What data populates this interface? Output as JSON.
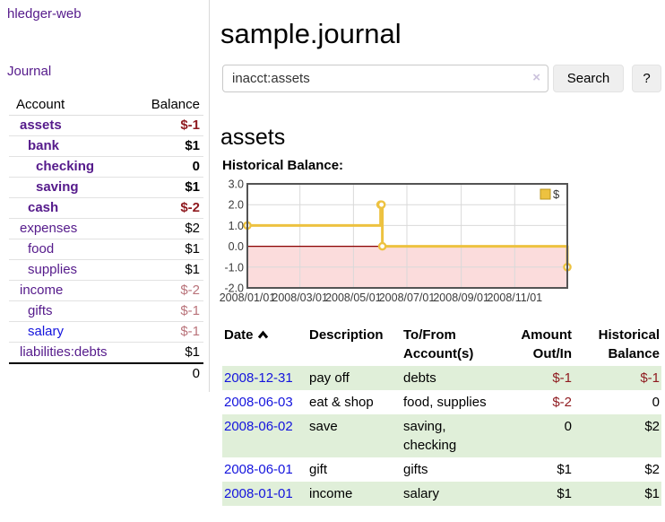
{
  "colors": {
    "link_purple": "#551a8b",
    "link_blue": "#1414dd",
    "negative_strong": "#8f1a1f",
    "negative_muted": "#b9737a",
    "row_green": "#e0efd9",
    "series_gold": "#edc240",
    "series_gold_dark": "#b9961f",
    "negative_region_pink": "#fbdcdc",
    "zero_line_red": "#8b0000",
    "chart_border": "#545454",
    "grid_line": "#d9d9d9"
  },
  "sidebar": {
    "app_title": "hledger-web",
    "journal_label": "Journal",
    "accounts_table": {
      "headers": {
        "account": "Account",
        "balance": "Balance"
      },
      "rows": [
        {
          "name": "assets",
          "depth": 1,
          "bold": true,
          "link_color": "purple",
          "balance": "$-1",
          "balance_color": "neg-strong"
        },
        {
          "name": "bank",
          "depth": 2,
          "bold": true,
          "link_color": "purple",
          "balance": "$1",
          "balance_color": "plain"
        },
        {
          "name": "checking",
          "depth": 3,
          "bold": true,
          "link_color": "purple",
          "balance": "0",
          "balance_color": "plain"
        },
        {
          "name": "saving",
          "depth": 3,
          "bold": true,
          "link_color": "purple",
          "balance": "$1",
          "balance_color": "plain"
        },
        {
          "name": "cash",
          "depth": 2,
          "bold": true,
          "link_color": "purple",
          "balance": "$-2",
          "balance_color": "neg-strong"
        },
        {
          "name": "expenses",
          "depth": 1,
          "bold": false,
          "link_color": "purple",
          "balance": "$2",
          "balance_color": "plain"
        },
        {
          "name": "food",
          "depth": 2,
          "bold": false,
          "link_color": "purple",
          "balance": "$1",
          "balance_color": "plain"
        },
        {
          "name": "supplies",
          "depth": 2,
          "bold": false,
          "link_color": "purple",
          "balance": "$1",
          "balance_color": "plain"
        },
        {
          "name": "income",
          "depth": 1,
          "bold": false,
          "link_color": "purple",
          "balance": "$-2",
          "balance_color": "neg-muted"
        },
        {
          "name": "gifts",
          "depth": 2,
          "bold": false,
          "link_color": "purple",
          "balance": "$-1",
          "balance_color": "neg-muted"
        },
        {
          "name": "salary",
          "depth": 2,
          "bold": false,
          "link_color": "blue",
          "balance": "$-1",
          "balance_color": "neg-muted"
        },
        {
          "name": "liabilities:debts",
          "depth": 1,
          "bold": false,
          "link_color": "purple",
          "balance": "$1",
          "balance_color": "plain",
          "last": true
        }
      ],
      "total": "0"
    }
  },
  "main": {
    "title": "sample.journal",
    "search": {
      "value": "inacct:assets",
      "clear_icon": "×",
      "search_label": "Search",
      "help_label": "?"
    },
    "account_heading": "assets",
    "register": {
      "headers": {
        "date": "Date",
        "description": "Description",
        "tofrom": "To/From Account(s)",
        "amount": "Amount Out/In",
        "balance": "Historical Balance"
      },
      "rows": [
        {
          "date": "2008-12-31",
          "description": "pay off",
          "accounts": "debts",
          "amount": "$-1",
          "amount_neg": true,
          "balance": "$-1",
          "balance_neg": true,
          "green": true
        },
        {
          "date": "2008-06-03",
          "description": "eat & shop",
          "accounts": "food, supplies",
          "amount": "$-2",
          "amount_neg": true,
          "balance": "0",
          "balance_neg": false,
          "green": false
        },
        {
          "date": "2008-06-02",
          "description": "save",
          "accounts": "saving, checking",
          "amount": "0",
          "amount_neg": false,
          "balance": "$2",
          "balance_neg": false,
          "green": true
        },
        {
          "date": "2008-06-01",
          "description": "gift",
          "accounts": "gifts",
          "amount": "$1",
          "amount_neg": false,
          "balance": "$2",
          "balance_neg": false,
          "green": false
        },
        {
          "date": "2008-01-01",
          "description": "income",
          "accounts": "salary",
          "amount": "$1",
          "amount_neg": false,
          "balance": "$1",
          "balance_neg": false,
          "green": true
        }
      ]
    }
  },
  "chart_data": {
    "type": "line",
    "step": true,
    "title": "Historical Balance:",
    "legend": {
      "label": "$",
      "position": "top-right"
    },
    "x_range": [
      "2008-01-01",
      "2008-12-31"
    ],
    "ylim": [
      -2,
      3
    ],
    "y_ticks": [
      "3.0",
      "2.0",
      "1.0",
      "0.0",
      "-1.0",
      "-2.0"
    ],
    "x_ticks": [
      {
        "label": "2008/01/01",
        "date": "2008-01-01"
      },
      {
        "label": "2008/03/01",
        "date": "2008-03-01"
      },
      {
        "label": "2008/05/01",
        "date": "2008-05-01"
      },
      {
        "label": "2008/07/01",
        "date": "2008-07-01"
      },
      {
        "label": "2008/09/01",
        "date": "2008-09-01"
      },
      {
        "label": "2008/11/01",
        "date": "2008-11-01"
      }
    ],
    "series": [
      {
        "name": "$",
        "points": [
          {
            "date": "2008-01-01",
            "value": 1
          },
          {
            "date": "2008-06-01",
            "value": 2
          },
          {
            "date": "2008-06-02",
            "value": 2
          },
          {
            "date": "2008-06-03",
            "value": 0
          },
          {
            "date": "2008-12-31",
            "value": -1
          }
        ]
      }
    ],
    "grid": true,
    "negative_region_shaded": true
  }
}
